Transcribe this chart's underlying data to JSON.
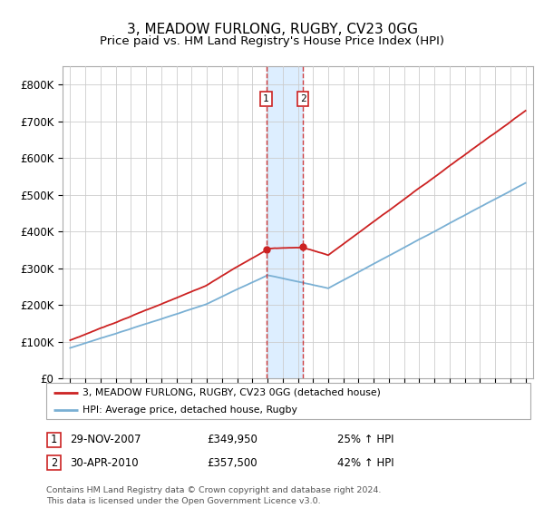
{
  "title": "3, MEADOW FURLONG, RUGBY, CV23 0GG",
  "subtitle": "Price paid vs. HM Land Registry's House Price Index (HPI)",
  "ylim": [
    0,
    850000
  ],
  "yticks": [
    0,
    100000,
    200000,
    300000,
    400000,
    500000,
    600000,
    700000,
    800000
  ],
  "ytick_labels": [
    "£0",
    "£100K",
    "£200K",
    "£300K",
    "£400K",
    "£500K",
    "£600K",
    "£700K",
    "£800K"
  ],
  "hpi_color": "#7ab0d4",
  "price_color": "#cc2222",
  "sale1_date": 2007.91,
  "sale1_price": 349950,
  "sale2_date": 2010.33,
  "sale2_price": 357500,
  "legend_price_label": "3, MEADOW FURLONG, RUGBY, CV23 0GG (detached house)",
  "legend_hpi_label": "HPI: Average price, detached house, Rugby",
  "footer": "Contains HM Land Registry data © Crown copyright and database right 2024.\nThis data is licensed under the Open Government Licence v3.0.",
  "table_row1": [
    "1",
    "29-NOV-2007",
    "£349,950",
    "25% ↑ HPI"
  ],
  "table_row2": [
    "2",
    "30-APR-2010",
    "£357,500",
    "42% ↑ HPI"
  ],
  "background_color": "#ffffff",
  "grid_color": "#cccccc",
  "span_color": "#ddeeff",
  "xlim_left": 1994.5,
  "xlim_right": 2025.5,
  "title_fontsize": 11,
  "subtitle_fontsize": 9.5
}
